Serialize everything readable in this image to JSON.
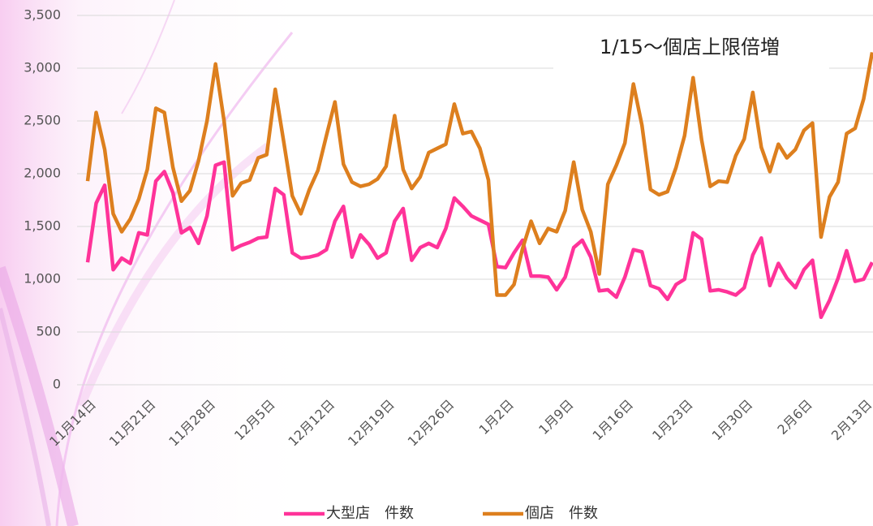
{
  "chart_data": {
    "type": "line",
    "annotation": "1/15〜個店上限倍増",
    "categories": [
      "11月14日",
      null,
      null,
      null,
      null,
      null,
      null,
      "11月21日",
      null,
      null,
      null,
      null,
      null,
      null,
      "11月28日",
      null,
      null,
      null,
      null,
      null,
      null,
      "12月5日",
      null,
      null,
      null,
      null,
      null,
      null,
      "12月12日",
      null,
      null,
      null,
      null,
      null,
      null,
      "12月19日",
      null,
      null,
      null,
      null,
      null,
      null,
      "12月26日",
      null,
      null,
      null,
      null,
      null,
      null,
      "1月2日",
      null,
      null,
      null,
      null,
      null,
      null,
      "1月9日",
      null,
      null,
      null,
      null,
      null,
      null,
      "1月16日",
      null,
      null,
      null,
      null,
      null,
      null,
      "1月23日",
      null,
      null,
      null,
      null,
      null,
      null,
      "1月30日",
      null,
      null,
      null,
      null,
      null,
      null,
      "2月6日",
      null,
      null,
      null,
      null,
      null,
      null,
      "2月13日",
      null
    ],
    "series": [
      {
        "name": "大型店　件数",
        "color": "#ff3399",
        "values": [
          1160,
          1720,
          1890,
          1090,
          1200,
          1150,
          1440,
          1420,
          1930,
          2020,
          1820,
          1440,
          1490,
          1340,
          1600,
          2080,
          2110,
          1280,
          1320,
          1350,
          1390,
          1400,
          1860,
          1800,
          1250,
          1200,
          1210,
          1230,
          1280,
          1550,
          1690,
          1210,
          1420,
          1330,
          1200,
          1250,
          1550,
          1670,
          1180,
          1300,
          1340,
          1300,
          1480,
          1770,
          1690,
          1600,
          1560,
          1520,
          1120,
          1110,
          1250,
          1370,
          1030,
          1030,
          1020,
          900,
          1020,
          1300,
          1370,
          1210,
          890,
          900,
          830,
          1020,
          1280,
          1260,
          940,
          910,
          810,
          950,
          1000,
          1440,
          1380,
          890,
          900,
          880,
          850,
          920,
          1230,
          1390,
          940,
          1150,
          1010,
          920,
          1090,
          1180,
          640,
          800,
          1010,
          1270,
          980,
          1000,
          1160
        ]
      },
      {
        "name": "個店　件数",
        "color": "#dd7f1e",
        "values": [
          1930,
          2580,
          2230,
          1620,
          1450,
          1570,
          1760,
          2040,
          2620,
          2580,
          2060,
          1740,
          1840,
          2120,
          2500,
          3040,
          2500,
          1790,
          1910,
          1940,
          2150,
          2180,
          2800,
          2300,
          1790,
          1620,
          1850,
          2030,
          2360,
          2680,
          2090,
          1920,
          1880,
          1900,
          1950,
          2070,
          2550,
          2040,
          1860,
          1970,
          2200,
          2240,
          2280,
          2660,
          2380,
          2400,
          2240,
          1940,
          850,
          850,
          950,
          1290,
          1550,
          1340,
          1480,
          1450,
          1650,
          2110,
          1660,
          1450,
          1050,
          1900,
          2080,
          2290,
          2850,
          2460,
          1850,
          1800,
          1830,
          2060,
          2360,
          2910,
          2320,
          1880,
          1930,
          1920,
          2170,
          2330,
          2770,
          2250,
          2020,
          2280,
          2150,
          2230,
          2410,
          2480,
          1400,
          1780,
          1920,
          2380,
          2430,
          2710,
          3150
        ]
      }
    ],
    "ylim": [
      0,
      3500
    ],
    "yticks": [
      0,
      500,
      {
        "value": 1000,
        "label": "1,000"
      },
      {
        "value": 1500,
        "label": "1,500"
      },
      {
        "value": 2000,
        "label": "2,000"
      },
      {
        "value": 2500,
        "label": "2,500"
      },
      {
        "value": 3000,
        "label": "3,000"
      },
      {
        "value": 3500,
        "label": "3,500"
      }
    ],
    "grid": true
  }
}
